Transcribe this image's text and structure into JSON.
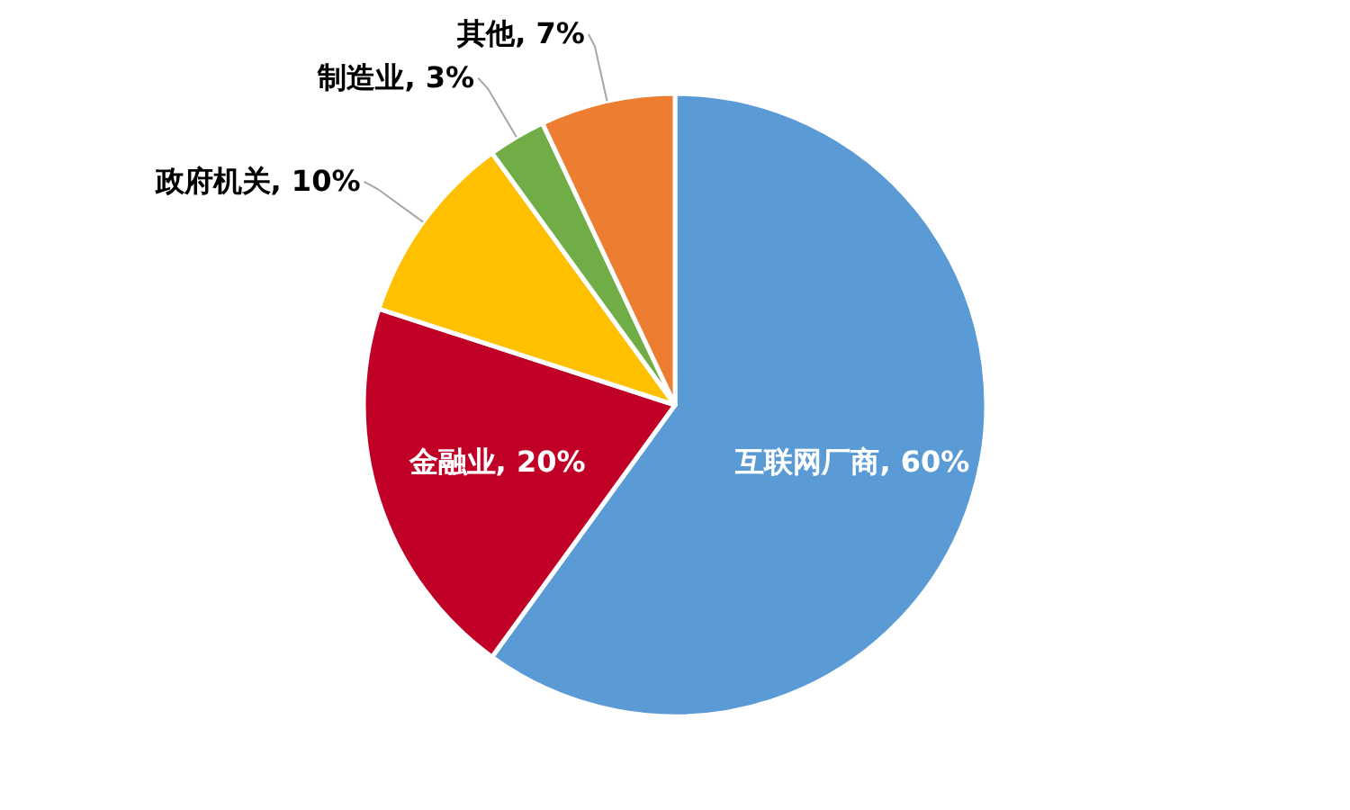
{
  "chart_data": {
    "type": "pie",
    "categories": [
      "互联网厂商",
      "金融业",
      "政府机关",
      "制造业",
      "其他"
    ],
    "values": [
      60,
      20,
      10,
      3,
      7
    ],
    "value_labels": [
      "60%",
      "20%",
      "10%",
      "3%",
      "7%"
    ],
    "colors": [
      "#5b9bd5",
      "#c00026",
      "#ffc000",
      "#70ad47",
      "#ed7d31"
    ]
  }
}
